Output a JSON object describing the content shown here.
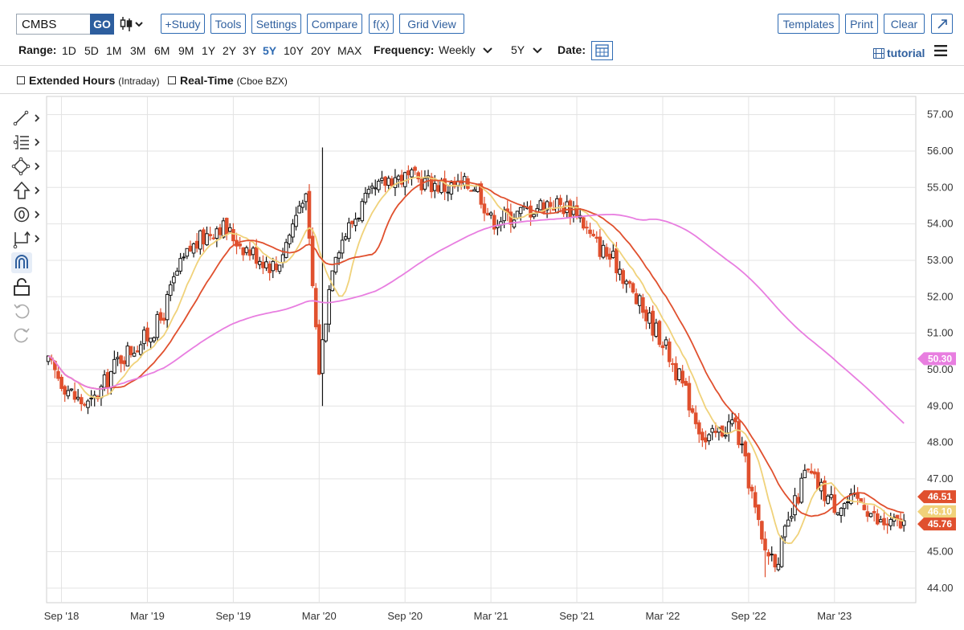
{
  "toolbar": {
    "symbol": "CMBS",
    "go_label": "GO",
    "study_label": "+Study",
    "tools_label": "Tools",
    "settings_label": "Settings",
    "compare_label": "Compare",
    "fx_label": "f(x)",
    "gridview_label": "Grid View",
    "templates_label": "Templates",
    "print_label": "Print",
    "clear_label": "Clear"
  },
  "rangebar": {
    "range_label": "Range:",
    "ranges": [
      "1D",
      "5D",
      "1M",
      "3M",
      "6M",
      "9M",
      "1Y",
      "2Y",
      "3Y",
      "5Y",
      "10Y",
      "20Y",
      "MAX"
    ],
    "active_range": "5Y",
    "frequency_label": "Frequency:",
    "frequency_value": "Weekly",
    "period_value": "5Y",
    "date_label": "Date:",
    "tutorial_label": "tutorial"
  },
  "options": {
    "extended_label": "Extended Hours",
    "extended_sub": "(Intraday)",
    "realtime_label": "Real-Time",
    "realtime_sub": "(Cboe BZX)"
  },
  "drawing_tools": [
    "line-tool-icon",
    "list-tool-icon",
    "shape-tool-icon",
    "arrow-tool-icon",
    "annotation-tool-icon",
    "measure-tool-icon",
    "magnet-icon",
    "lock-icon",
    "undo-icon",
    "redo-icon"
  ],
  "chart_data": {
    "type": "candlestick",
    "symbol": "CMBS",
    "frequency": "Weekly",
    "range": "5Y",
    "ylim": [
      43.6,
      57.5
    ],
    "y_ticks": [
      "44.00",
      "45.00",
      "47.00",
      "48.00",
      "49.00",
      "50.00",
      "51.00",
      "52.00",
      "53.00",
      "54.00",
      "55.00",
      "56.00",
      "57.00"
    ],
    "x_labels": [
      {
        "label": "Sep '18",
        "date": "2018-09"
      },
      {
        "label": "Mar '19",
        "date": "2019-03"
      },
      {
        "label": "Sep '19",
        "date": "2019-09"
      },
      {
        "label": "Mar '20",
        "date": "2020-03"
      },
      {
        "label": "Sep '20",
        "date": "2020-09"
      },
      {
        "label": "Mar '21",
        "date": "2021-03"
      },
      {
        "label": "Sep '21",
        "date": "2021-09"
      },
      {
        "label": "Mar '22",
        "date": "2022-03"
      },
      {
        "label": "Sep '22",
        "date": "2022-09"
      },
      {
        "label": "Mar '23",
        "date": "2023-03"
      }
    ],
    "price_path": [
      {
        "date": "2018-08",
        "close": 50.2
      },
      {
        "date": "2018-10",
        "close": 49.2
      },
      {
        "date": "2018-11",
        "close": 49.0
      },
      {
        "date": "2018-12",
        "close": 49.6
      },
      {
        "date": "2019-01",
        "close": 50.3
      },
      {
        "date": "2019-03",
        "close": 50.9
      },
      {
        "date": "2019-04",
        "close": 51.4
      },
      {
        "date": "2019-05",
        "close": 52.6
      },
      {
        "date": "2019-06",
        "close": 53.3
      },
      {
        "date": "2019-08",
        "close": 54.0
      },
      {
        "date": "2019-10",
        "close": 53.3
      },
      {
        "date": "2019-12",
        "close": 52.8
      },
      {
        "date": "2020-01",
        "close": 53.8
      },
      {
        "date": "2020-02",
        "close": 55.0
      },
      {
        "date": "2020-03",
        "close": 50.0
      },
      {
        "date": "2020-04",
        "close": 53.2
      },
      {
        "date": "2020-06",
        "close": 54.5
      },
      {
        "date": "2020-08",
        "close": 55.3
      },
      {
        "date": "2020-10",
        "close": 55.2
      },
      {
        "date": "2020-12",
        "close": 55.0
      },
      {
        "date": "2021-02",
        "close": 55.1
      },
      {
        "date": "2021-03",
        "close": 54.1
      },
      {
        "date": "2021-05",
        "close": 54.3
      },
      {
        "date": "2021-07",
        "close": 54.6
      },
      {
        "date": "2021-09",
        "close": 54.4
      },
      {
        "date": "2021-10",
        "close": 53.6
      },
      {
        "date": "2021-12",
        "close": 52.8
      },
      {
        "date": "2022-01",
        "close": 52.0
      },
      {
        "date": "2022-03",
        "close": 50.8
      },
      {
        "date": "2022-05",
        "close": 49.0
      },
      {
        "date": "2022-06",
        "close": 48.0
      },
      {
        "date": "2022-08",
        "close": 48.6
      },
      {
        "date": "2022-09",
        "close": 47.0
      },
      {
        "date": "2022-10",
        "close": 45.1
      },
      {
        "date": "2022-11",
        "close": 44.8
      },
      {
        "date": "2022-12",
        "close": 46.0
      },
      {
        "date": "2023-01",
        "close": 47.2
      },
      {
        "date": "2023-03",
        "close": 46.3
      },
      {
        "date": "2023-05",
        "close": 46.4
      },
      {
        "date": "2023-06",
        "close": 45.8
      },
      {
        "date": "2023-07",
        "close": 45.76
      }
    ],
    "events": [
      {
        "date": "2020-03",
        "high": 56.1,
        "low": 49.0
      },
      {
        "date": "2022-10",
        "low": 44.3
      }
    ],
    "series": [
      {
        "color": "#f0d27a",
        "last": 46.1,
        "last_label": "46.10"
      },
      {
        "color": "#e0502e",
        "last": 46.51,
        "last_label": "46.51"
      },
      {
        "color": "#e87ee0",
        "last": 50.3,
        "last_label": "50.30"
      },
      {
        "color": "#e0502e",
        "last": 45.76,
        "last_label": "45.76"
      }
    ],
    "colors": {
      "up": "#111111",
      "down": "#e0502e",
      "grid": "#e3e3e3"
    },
    "grid": true
  }
}
